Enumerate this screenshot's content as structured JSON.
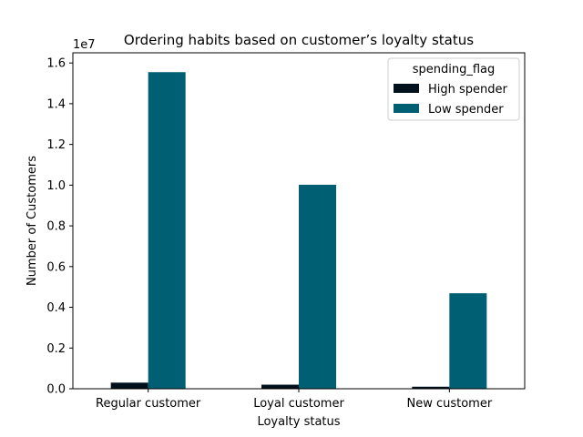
{
  "chart_data": {
    "type": "bar",
    "title": "Ordering habits based on customer’s loyalty status",
    "xlabel": "Loyalty status",
    "ylabel": "Number of Customers",
    "y_offset_label": "1e7",
    "y_scale": 10000000,
    "categories": [
      "Regular customer",
      "Loyal customer",
      "New customer"
    ],
    "series": [
      {
        "name": "High spender",
        "color": "#00111c",
        "values": [
          300000,
          200000,
          100000
        ]
      },
      {
        "name": "Low spender",
        "color": "#005f73",
        "values": [
          15550000,
          10020000,
          4690000
        ]
      }
    ],
    "ylim": [
      0,
      16500000
    ],
    "yticks": [
      0,
      2000000,
      4000000,
      6000000,
      8000000,
      10000000,
      12000000,
      14000000,
      16000000
    ],
    "ytick_labels": [
      "0.0",
      "0.2",
      "0.4",
      "0.6",
      "0.8",
      "1.0",
      "1.2",
      "1.4",
      "1.6"
    ],
    "grid": false,
    "legend": {
      "title": "spending_flag",
      "position": "top-right"
    }
  }
}
